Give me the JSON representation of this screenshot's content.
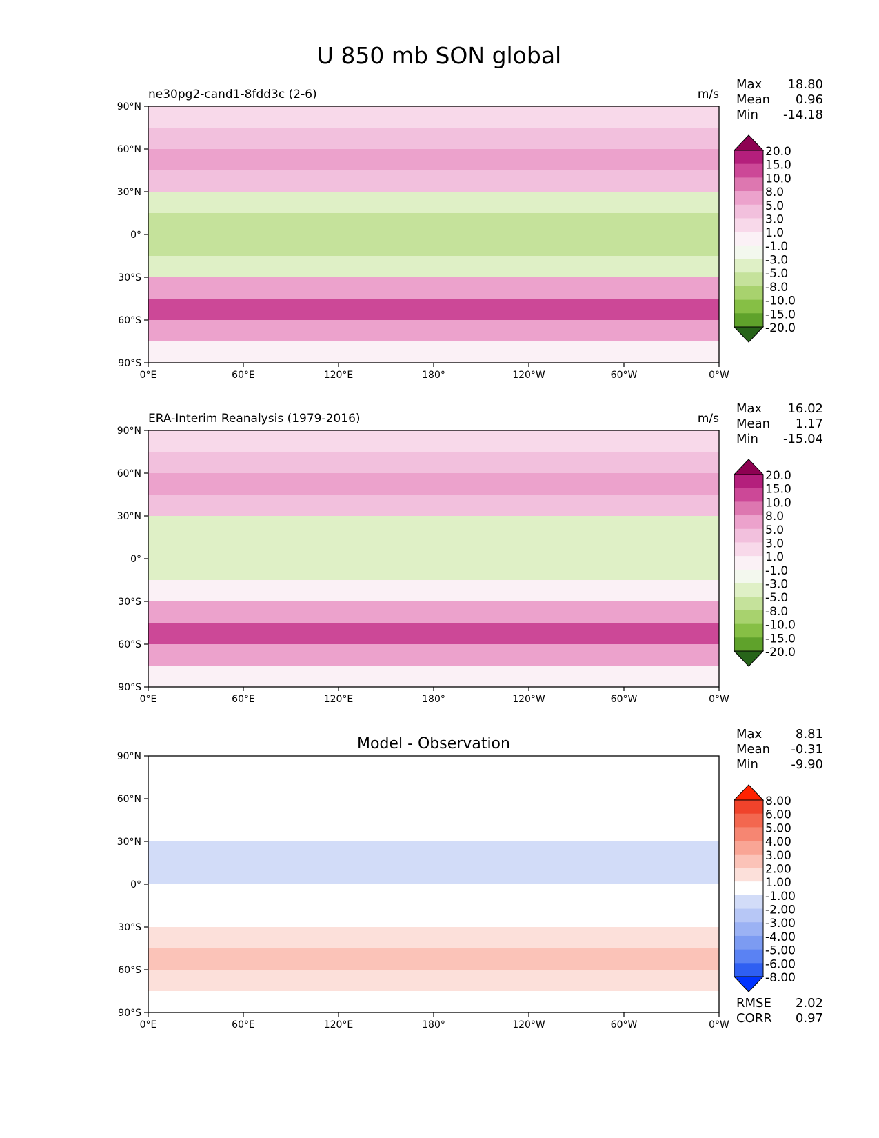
{
  "title": "U 850 mb SON global",
  "colors": {
    "test_ref": [
      "#276419",
      "#3b8a1e",
      "#5fa22b",
      "#86bf45",
      "#a8d26e",
      "#c5e29b",
      "#dff0c6",
      "#f3f8ee",
      "#fbf1f6",
      "#f8d9ea",
      "#f2c0dd",
      "#eca2cc",
      "#dd77b0",
      "#cc4897",
      "#b41f7c",
      "#8e0152"
    ],
    "diff": [
      "#0033ff",
      "#2f5ff2",
      "#5a82f3",
      "#7c9bf2",
      "#9bb2f4",
      "#b7c7f6",
      "#d2dcf8",
      "#ffffff",
      "#fce0da",
      "#fbc3b8",
      "#f9a595",
      "#f68672",
      "#f3674f",
      "#f0432b",
      "#ff2200"
    ]
  },
  "x_ticks": [
    "0°E",
    "60°E",
    "120°E",
    "180°",
    "120°W",
    "60°W",
    "0°W"
  ],
  "y_ticks": [
    "90°N",
    "60°N",
    "30°N",
    "0°",
    "30°S",
    "60°S",
    "90°S"
  ],
  "chart_data": [
    {
      "type": "heatmap",
      "panel": "test",
      "title_left": "ne30pg2-cand1-8fdd3c (2-6)",
      "units": "m/s",
      "stats": {
        "max_label": "Max",
        "max": "18.80",
        "mean_label": "Mean",
        "mean": "0.96",
        "min_label": "Min",
        "min": "-14.18"
      },
      "levels": [
        "20.0",
        "15.0",
        "10.0",
        "8.0",
        "5.0",
        "3.0",
        "1.0",
        "-1.0",
        "-3.0",
        "-5.0",
        "-8.0",
        "-10.0",
        "-15.0",
        "-20.0"
      ],
      "lat": [
        90,
        75,
        60,
        45,
        30,
        15,
        0,
        -15,
        -30,
        -45,
        -60,
        -75,
        -90
      ],
      "zonal_mean": [
        0.5,
        3,
        5,
        8,
        -2,
        -4,
        -3,
        -5,
        2,
        11,
        13,
        -1,
        0
      ]
    },
    {
      "type": "heatmap",
      "panel": "ref",
      "title_left": "ERA-Interim Reanalysis (1979-2016)",
      "units": "m/s",
      "stats": {
        "max_label": "Max",
        "max": "16.02",
        "mean_label": "Mean",
        "mean": "1.17",
        "min_label": "Min",
        "min": "-15.04"
      },
      "levels": [
        "20.0",
        "15.0",
        "10.0",
        "8.0",
        "5.0",
        "3.0",
        "1.0",
        "-1.0",
        "-3.0",
        "-5.0",
        "-8.0",
        "-10.0",
        "-15.0",
        "-20.0"
      ],
      "lat": [
        90,
        75,
        60,
        45,
        30,
        15,
        0,
        -15,
        -30,
        -45,
        -60,
        -75,
        -90
      ],
      "zonal_mean": [
        0.5,
        4,
        5,
        7,
        -1,
        -3,
        -2,
        -4,
        2,
        10,
        12,
        -2,
        0
      ]
    },
    {
      "type": "heatmap",
      "panel": "diff",
      "title_center": "Model - Observation",
      "stats": {
        "max_label": "Max",
        "max": "8.81",
        "mean_label": "Mean",
        "mean": "-0.31",
        "min_label": "Min",
        "min": "-9.90"
      },
      "levels": [
        "8.00",
        "6.00",
        "5.00",
        "4.00",
        "3.00",
        "2.00",
        "1.00",
        "-1.00",
        "-2.00",
        "-3.00",
        "-4.00",
        "-5.00",
        "-6.00",
        "-8.00"
      ],
      "metrics": {
        "rmse_label": "RMSE",
        "rmse": "2.02",
        "corr_label": "CORR",
        "corr": "0.97"
      },
      "lat": [
        90,
        75,
        60,
        45,
        30,
        15,
        0,
        -15,
        -30,
        -45,
        -60,
        -75,
        -90
      ],
      "zonal_mean": [
        0.5,
        -1,
        -1,
        1,
        -0.5,
        -2,
        -1,
        -1,
        -0.3,
        3,
        1.5,
        0.5,
        0
      ]
    }
  ]
}
